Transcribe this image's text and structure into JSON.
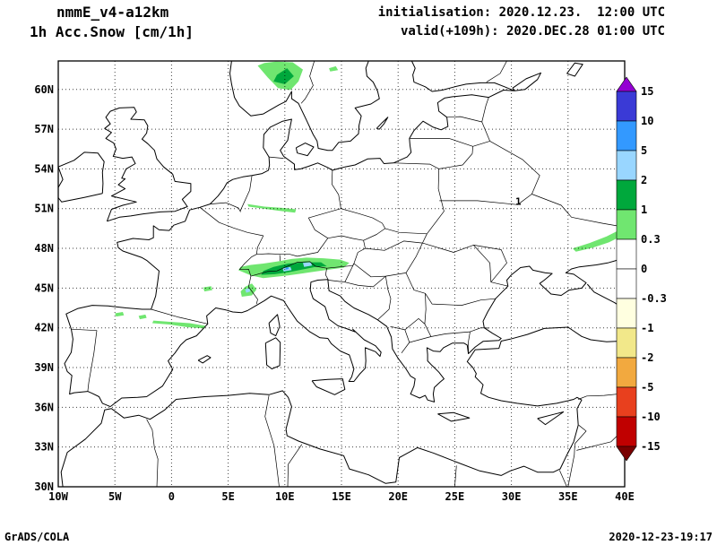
{
  "header": {
    "model": "nmmE_v4-a12km",
    "variable": "1h Acc.Snow [cm/1h]",
    "init": "initialisation: 2020.12.23.  12:00 UTC",
    "valid": "valid(+109h): 2020.DEC.28 01:00 UTC"
  },
  "footer": {
    "left": "GrADS/COLA",
    "right": "2020-12-23-19:17"
  },
  "chart_data": {
    "type": "map",
    "subtype": "shaded-forecast-map",
    "region": "Europe",
    "units": "cm/1h",
    "lon_range": [
      -10,
      40
    ],
    "lat_range": [
      30,
      62.15
    ],
    "grid_style": "dotted",
    "x_axis": {
      "tick_lons": [
        -10,
        -5,
        0,
        5,
        10,
        15,
        20,
        25,
        30,
        35,
        40
      ],
      "tick_labels": [
        "10W",
        "5W",
        "0",
        "5E",
        "10E",
        "15E",
        "20E",
        "25E",
        "30E",
        "35E",
        "40E"
      ]
    },
    "y_axis": {
      "tick_lats": [
        30,
        33,
        36,
        39,
        42,
        45,
        48,
        51,
        54,
        57,
        60
      ],
      "tick_labels": [
        "30N",
        "33N",
        "36N",
        "39N",
        "42N",
        "45N",
        "48N",
        "51N",
        "54N",
        "57N",
        "60N"
      ]
    },
    "colorbar": {
      "boundary_labels_top_to_bottom": [
        "15",
        "10",
        "5",
        "2",
        "1",
        "0.3",
        "0",
        "-0.3",
        "-1",
        "-2",
        "-5",
        "-10",
        "-15"
      ],
      "segment_colors_top_to_bottom": [
        "#3a3ad6",
        "#3399ff",
        "#99d6ff",
        "#00a83c",
        "#70e670",
        "#ffffff",
        "#ffffff",
        "#ffffe0",
        "#f2e88a",
        "#f2a93f",
        "#e8401e",
        "#c00000"
      ],
      "above_max_color": "#9400d3",
      "below_min_color": "#7a0000"
    },
    "contour_labels": [
      {
        "text": "1",
        "lon": 30.35,
        "lat": 51.3
      }
    ],
    "shaded_regions": [
      {
        "name": "norway-main",
        "value_range": [
          0.3,
          1
        ],
        "color": "#70e670",
        "points": [
          [
            7.6,
            61.8
          ],
          [
            8.5,
            60.9
          ],
          [
            9.4,
            60.1
          ],
          [
            10.5,
            59.95
          ],
          [
            11.2,
            60.6
          ],
          [
            11.6,
            61.5
          ],
          [
            10.7,
            62.05
          ],
          [
            9.2,
            62.1
          ],
          [
            8.2,
            62.0
          ]
        ]
      },
      {
        "name": "norway-core",
        "value_range": [
          1,
          2
        ],
        "color": "#00a83c",
        "points": [
          [
            9.0,
            60.6
          ],
          [
            10.0,
            60.4
          ],
          [
            10.8,
            61.0
          ],
          [
            10.2,
            61.6
          ],
          [
            9.3,
            61.1
          ]
        ]
      },
      {
        "name": "sweden-dot",
        "value_range": [
          0.3,
          1
        ],
        "color": "#70e670",
        "points": [
          [
            14.0,
            61.35
          ],
          [
            14.7,
            61.45
          ],
          [
            14.5,
            61.75
          ],
          [
            13.9,
            61.6
          ]
        ]
      },
      {
        "name": "germany-band",
        "value_range": [
          0.3,
          1
        ],
        "color": "#70e670",
        "points": [
          [
            6.7,
            51.35
          ],
          [
            8.2,
            51.15
          ],
          [
            9.9,
            51.05
          ],
          [
            11.0,
            50.95
          ],
          [
            10.9,
            50.7
          ],
          [
            9.4,
            50.85
          ],
          [
            7.7,
            51.05
          ],
          [
            6.8,
            51.15
          ]
        ]
      },
      {
        "name": "alps-band",
        "value_range": [
          0.3,
          1
        ],
        "color": "#70e670",
        "points": [
          [
            5.9,
            46.35
          ],
          [
            7.0,
            45.95
          ],
          [
            8.1,
            45.75
          ],
          [
            9.2,
            45.85
          ],
          [
            10.3,
            45.95
          ],
          [
            11.5,
            46.1
          ],
          [
            12.7,
            46.25
          ],
          [
            13.9,
            46.4
          ],
          [
            15.2,
            46.55
          ],
          [
            15.7,
            46.9
          ],
          [
            14.9,
            47.15
          ],
          [
            13.4,
            47.25
          ],
          [
            11.9,
            47.3
          ],
          [
            10.6,
            47.2
          ],
          [
            9.3,
            47.0
          ],
          [
            8.1,
            46.85
          ],
          [
            7.0,
            46.75
          ],
          [
            6.1,
            46.6
          ]
        ]
      },
      {
        "name": "alps-core",
        "value_range": [
          1,
          2
        ],
        "color": "#00a83c",
        "points": [
          [
            7.9,
            46.0
          ],
          [
            9.1,
            46.05
          ],
          [
            10.3,
            46.2
          ],
          [
            11.5,
            46.4
          ],
          [
            12.7,
            46.6
          ],
          [
            13.7,
            46.65
          ],
          [
            13.2,
            46.95
          ],
          [
            11.7,
            46.95
          ],
          [
            10.3,
            46.85
          ],
          [
            9.0,
            46.6
          ],
          [
            8.1,
            46.3
          ]
        ]
      },
      {
        "name": "alps-blue-west",
        "value_range": [
          2,
          5
        ],
        "color": "#99d6ff",
        "points": [
          [
            9.9,
            46.25
          ],
          [
            10.6,
            46.35
          ],
          [
            10.5,
            46.6
          ],
          [
            9.8,
            46.5
          ]
        ]
      },
      {
        "name": "alps-blue-east",
        "value_range": [
          2,
          5
        ],
        "color": "#99d6ff",
        "points": [
          [
            11.7,
            46.6
          ],
          [
            12.4,
            46.7
          ],
          [
            12.3,
            46.95
          ],
          [
            11.6,
            46.9
          ]
        ]
      },
      {
        "name": "alps-deep-blue",
        "value_range": [
          5,
          10
        ],
        "color": "#3399ff",
        "points": [
          [
            10.1,
            46.4
          ],
          [
            10.35,
            46.45
          ],
          [
            10.3,
            46.58
          ],
          [
            10.05,
            46.53
          ]
        ]
      },
      {
        "name": "piedmont",
        "value_range": [
          0.3,
          1
        ],
        "color": "#70e670",
        "points": [
          [
            6.2,
            44.35
          ],
          [
            7.1,
            44.45
          ],
          [
            7.5,
            44.9
          ],
          [
            7.1,
            45.35
          ],
          [
            6.5,
            45.1
          ],
          [
            6.1,
            44.75
          ]
        ]
      },
      {
        "name": "piedmont-blue",
        "value_range": [
          2,
          5
        ],
        "color": "#99d6ff",
        "points": [
          [
            6.6,
            44.65
          ],
          [
            6.95,
            44.75
          ],
          [
            6.85,
            45.0
          ],
          [
            6.5,
            44.9
          ]
        ]
      },
      {
        "name": "massif-central",
        "value_range": [
          0.3,
          1
        ],
        "color": "#70e670",
        "points": [
          [
            2.9,
            44.75
          ],
          [
            3.6,
            44.85
          ],
          [
            3.5,
            45.15
          ],
          [
            2.8,
            45.05
          ]
        ]
      },
      {
        "name": "pyrenees-band",
        "value_range": [
          0.3,
          1
        ],
        "color": "#70e670",
        "points": [
          [
            -1.6,
            42.55
          ],
          [
            0.0,
            42.45
          ],
          [
            1.6,
            42.35
          ],
          [
            3.0,
            42.15
          ],
          [
            2.9,
            41.95
          ],
          [
            1.4,
            42.05
          ],
          [
            -0.2,
            42.25
          ],
          [
            -1.7,
            42.35
          ]
        ]
      },
      {
        "name": "cantabria-west",
        "value_range": [
          0.3,
          1
        ],
        "color": "#70e670",
        "points": [
          [
            -4.9,
            42.85
          ],
          [
            -4.2,
            42.95
          ],
          [
            -4.3,
            43.2
          ],
          [
            -5.0,
            43.1
          ]
        ]
      },
      {
        "name": "cantabria-east",
        "value_range": [
          0.3,
          1
        ],
        "color": "#70e670",
        "points": [
          [
            -2.8,
            42.65
          ],
          [
            -2.2,
            42.75
          ],
          [
            -2.3,
            43.0
          ],
          [
            -2.9,
            42.9
          ]
        ]
      },
      {
        "name": "east-ukraine-band",
        "value_range": [
          0.3,
          1
        ],
        "color": "#70e670",
        "points": [
          [
            35.4,
            48.0
          ],
          [
            36.9,
            48.4
          ],
          [
            38.4,
            48.9
          ],
          [
            39.9,
            49.55
          ],
          [
            39.9,
            49.0
          ],
          [
            38.6,
            48.45
          ],
          [
            37.2,
            48.05
          ],
          [
            35.7,
            47.75
          ]
        ]
      }
    ]
  }
}
